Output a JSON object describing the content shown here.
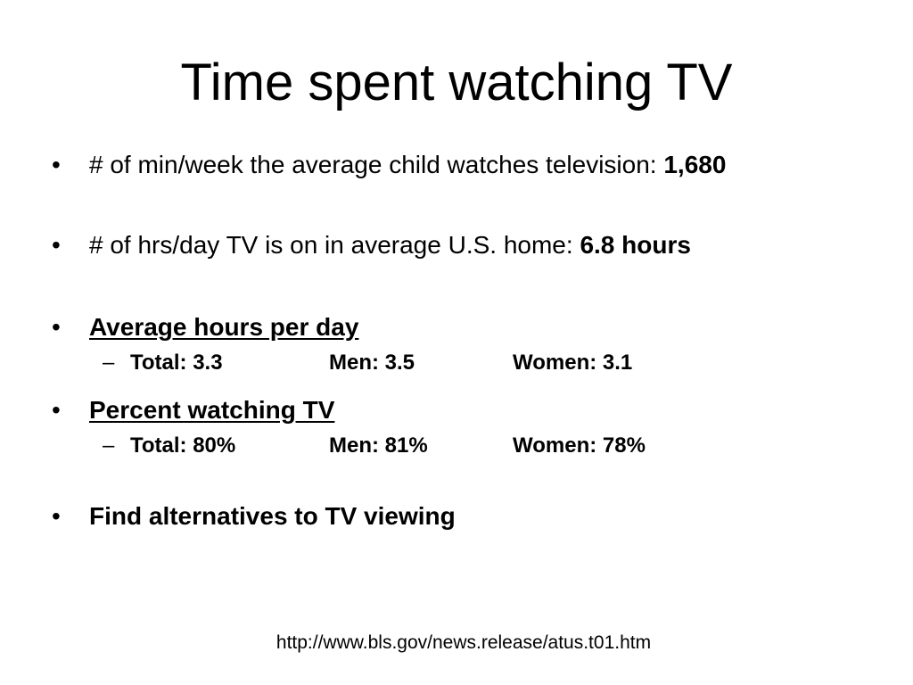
{
  "slide": {
    "title": "Time spent watching TV",
    "bullet_glyph": "•",
    "dash_glyph": "–",
    "bullets": [
      {
        "prefix": "# of min/week the average child watches television: ",
        "value": "1,680"
      },
      {
        "prefix": "# of hrs/day TV is on in average U.S. home: ",
        "value": "6.8 hours"
      },
      {
        "heading": "Average hours per day",
        "sub": {
          "total": "Total: 3.3",
          "men": "Men: 3.5",
          "women": "Women: 3.1"
        }
      },
      {
        "heading": "Percent watching TV",
        "sub": {
          "total": "Total: 80%",
          "men": "Men: 81%",
          "women": "Women: 78%"
        }
      },
      {
        "text": "Find alternatives to TV viewing"
      }
    ],
    "source": "http://www.bls.gov/news.release/atus.t01.htm"
  }
}
